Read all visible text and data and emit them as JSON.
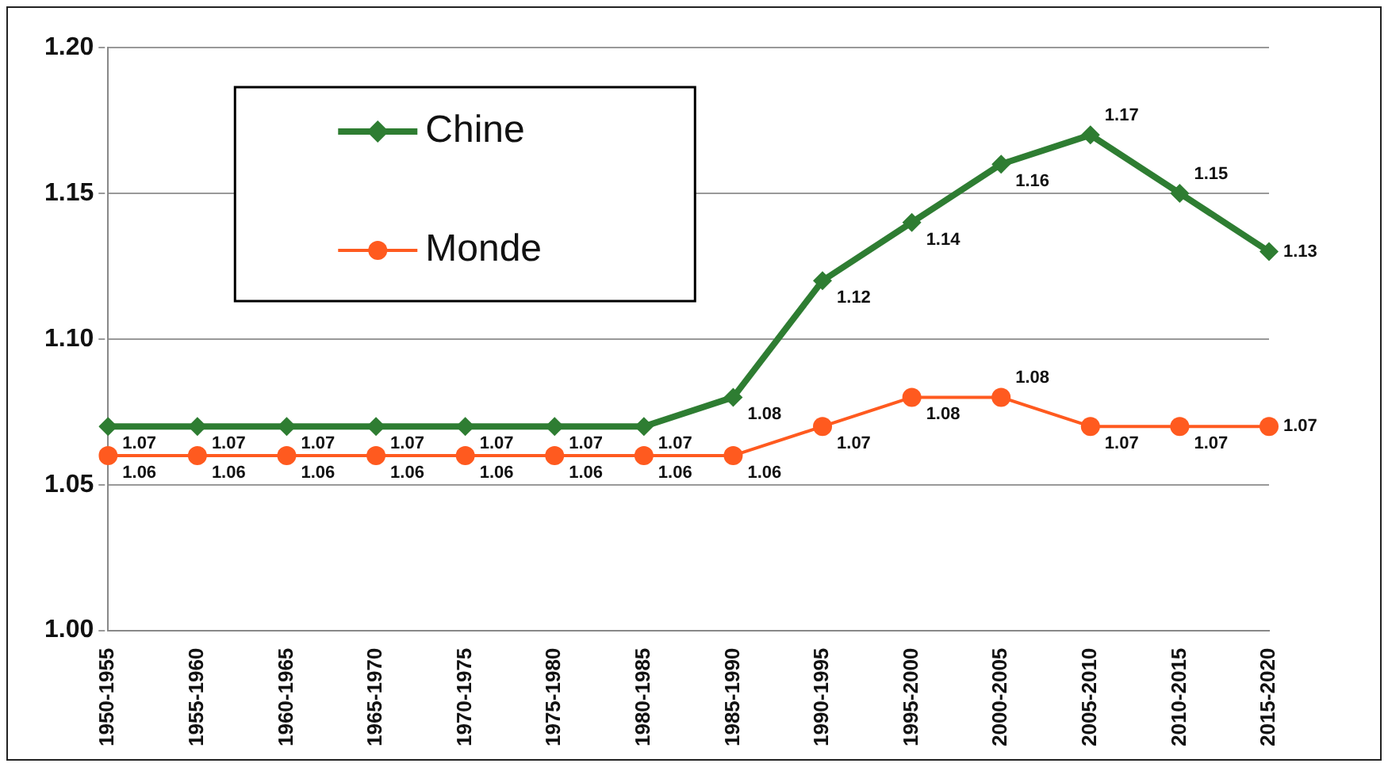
{
  "chart_data": {
    "type": "line",
    "categories": [
      "1950-1955",
      "1955-1960",
      "1960-1965",
      "1965-1970",
      "1970-1975",
      "1975-1980",
      "1980-1985",
      "1985-1990",
      "1990-1995",
      "1995-2000",
      "2000-2005",
      "2005-2010",
      "2010-2015",
      "2015-2020"
    ],
    "series": [
      {
        "name": "Chine",
        "color": "#2e7d32",
        "marker": "diamond",
        "values": [
          1.07,
          1.07,
          1.07,
          1.07,
          1.07,
          1.07,
          1.07,
          1.08,
          1.12,
          1.14,
          1.16,
          1.17,
          1.15,
          1.13
        ]
      },
      {
        "name": "Monde",
        "color": "#ff5a1f",
        "marker": "circle",
        "values": [
          1.06,
          1.06,
          1.06,
          1.06,
          1.06,
          1.06,
          1.06,
          1.06,
          1.07,
          1.08,
          1.08,
          1.07,
          1.07,
          1.07
        ]
      }
    ],
    "ylim": [
      1.0,
      1.2
    ],
    "yticks": [
      {
        "value": 1.0,
        "label": "1.00"
      },
      {
        "value": 1.05,
        "label": "1.05"
      },
      {
        "value": 1.1,
        "label": "1.10"
      },
      {
        "value": 1.15,
        "label": "1.15"
      },
      {
        "value": 1.2,
        "label": "1.20"
      }
    ],
    "grid": "y",
    "legend": "top left",
    "data_labels": true,
    "line_style": "solid"
  }
}
